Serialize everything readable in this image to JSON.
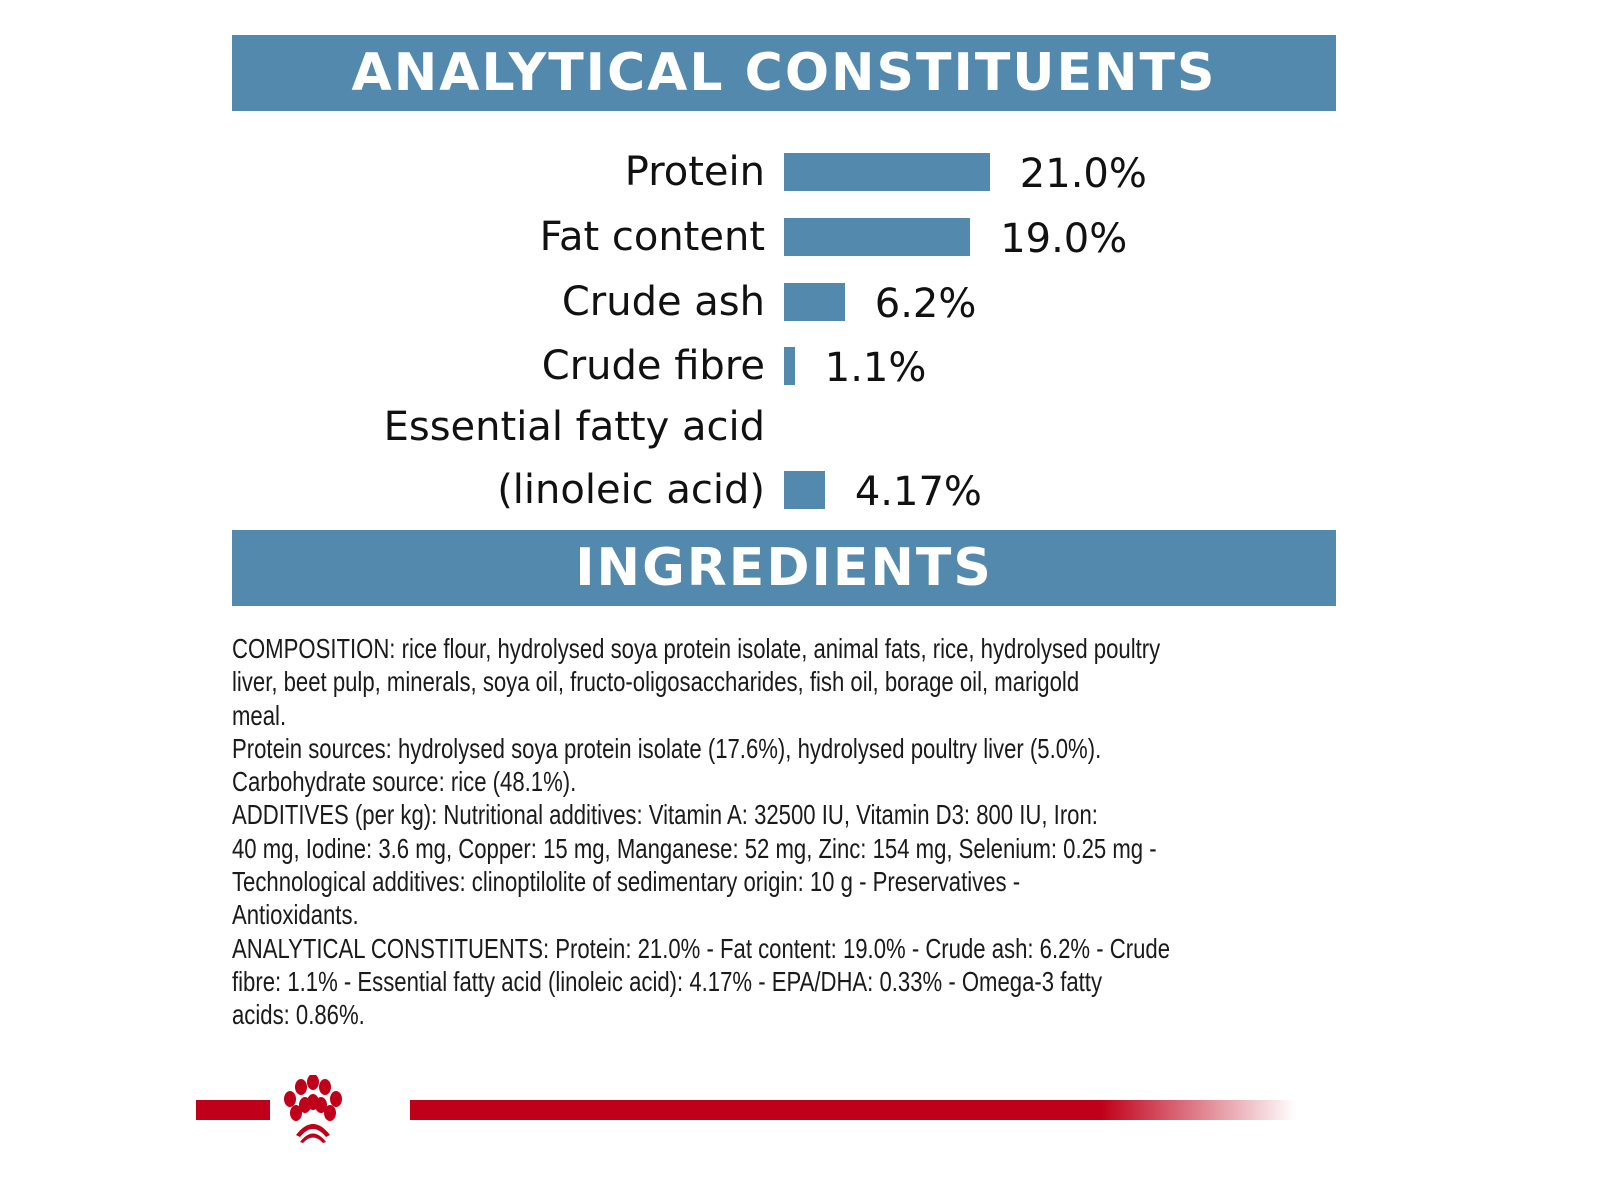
{
  "sections": {
    "analytical_title": "ANALYTICAL CONSTITUENTS",
    "ingredients_title": "INGREDIENTS"
  },
  "chart_data": {
    "type": "bar",
    "orientation": "horizontal",
    "categories": [
      "Protein",
      "Fat content",
      "Crude ash",
      "Crude fibre",
      "Essential fatty acid (linoleic acid)"
    ],
    "values": [
      21.0,
      19.0,
      6.2,
      1.1,
      4.17
    ],
    "data_labels": [
      "21.0%",
      "19.0%",
      "6.2%",
      "1.1%",
      "4.17%"
    ],
    "label_lines": [
      [
        "Protein"
      ],
      [
        "Fat content"
      ],
      [
        "Crude ash"
      ],
      [
        "Crude fibre"
      ],
      [
        "Essential fatty acid",
        "(linoleic acid)"
      ]
    ],
    "unit": "%",
    "bar_color": "#5389ad",
    "grid": false
  },
  "ingredients": {
    "lines": [
      "COMPOSITION: rice flour, hydrolysed soya protein isolate, animal fats, rice, hydrolysed poultry",
      "liver, beet pulp, minerals, soya oil, fructo-oligosaccharides, fish oil, borage oil, marigold",
      "meal.",
      "Protein sources: hydrolysed soya protein isolate (17.6%), hydrolysed poultry liver (5.0%).",
      "Carbohydrate source: rice (48.1%).",
      "ADDITIVES (per kg): Nutritional additives: Vitamin A: 32500 IU, Vitamin D3: 800 IU, Iron:",
      "40 mg, Iodine: 3.6 mg, Copper: 15 mg, Manganese: 52 mg, Zinc: 154 mg, Selenium: 0.25 mg -",
      "Technological additives: clinoptilolite of sedimentary origin: 10 g - Preservatives -",
      "Antioxidants.",
      "ANALYTICAL CONSTITUENTS: Protein: 21.0% - Fat content: 19.0% - Crude ash: 6.2% - Crude",
      "fibre: 1.1% - Essential fatty acid (linoleic acid): 4.17% - EPA/DHA: 0.33% - Omega-3 fatty",
      "acids: 0.86%."
    ]
  },
  "footer": {
    "logo": "crown-logo",
    "brand_color": "#c0001a"
  }
}
